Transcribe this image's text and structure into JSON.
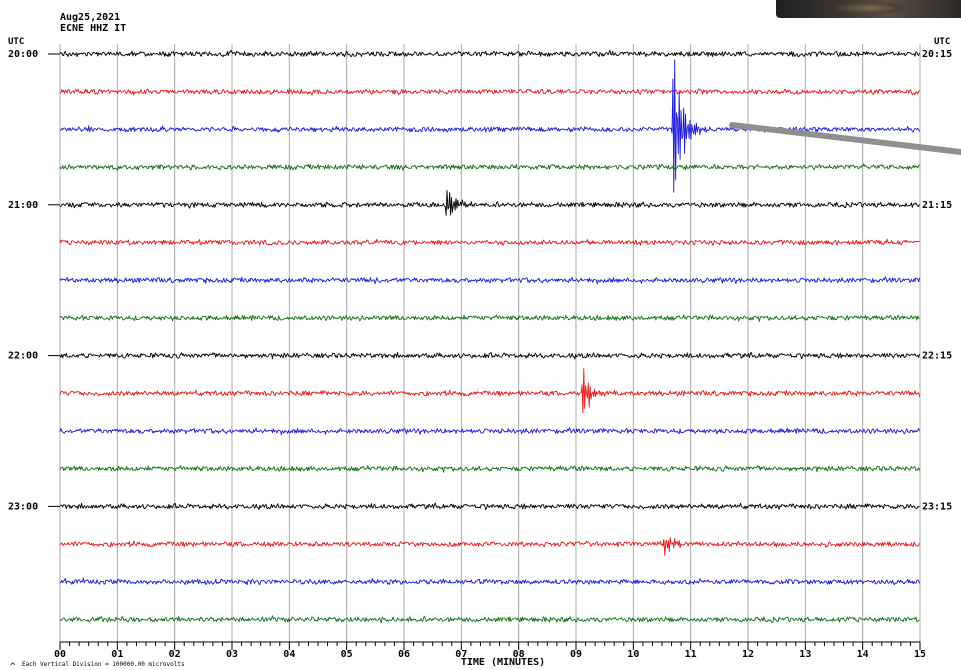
{
  "header": {
    "date": "Aug25,2021",
    "station": "ECNE HHZ IT",
    "utc_left": "UTC",
    "utc_right": "UTC"
  },
  "footer": {
    "scale_note": "Each Vertical Division = 100000.00 microvolts",
    "corner_mark": "^"
  },
  "colors": {
    "cycle": [
      "#000000",
      "#e41a1a",
      "#1a1ad8",
      "#127012"
    ],
    "grid": "#a9a9a9",
    "pointer": "#8f8f8f"
  },
  "chart_data": {
    "type": "line",
    "title": "",
    "xlabel": "TIME (MINUTES)",
    "ylabel": "",
    "xlim": [
      0,
      15
    ],
    "x_ticks": [
      "00",
      "01",
      "02",
      "03",
      "04",
      "05",
      "06",
      "07",
      "08",
      "09",
      "10",
      "11",
      "12",
      "13",
      "14",
      "15"
    ],
    "left_hour_labels": [
      {
        "row": 0,
        "text": "20:00"
      },
      {
        "row": 4,
        "text": "21:00"
      },
      {
        "row": 8,
        "text": "22:00"
      },
      {
        "row": 12,
        "text": "23:00"
      }
    ],
    "right_hour_labels": [
      {
        "row": 0,
        "text": "20:15"
      },
      {
        "row": 4,
        "text": "21:15"
      },
      {
        "row": 8,
        "text": "22:15"
      },
      {
        "row": 12,
        "text": "23:15"
      }
    ],
    "rows": 16,
    "row_minutes": 15,
    "grid": true,
    "events": [
      {
        "row": 2,
        "minute": 10.7,
        "amplitude": 1.6,
        "note": "large earthquake arrival"
      },
      {
        "row": 4,
        "minute": 6.75,
        "amplitude": 0.35
      },
      {
        "row": 9,
        "minute": 9.1,
        "amplitude": 0.45
      },
      {
        "row": 13,
        "minute": 10.55,
        "amplitude": 0.2
      }
    ]
  }
}
